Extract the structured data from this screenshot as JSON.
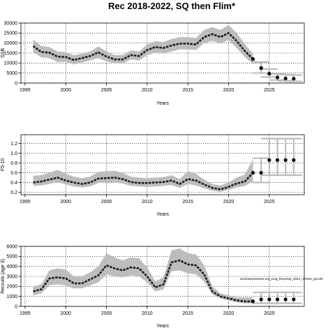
{
  "title": "Rec 2018-2022, SQ then Flim*",
  "note": "stockassessment.org_Ling_ReprSep_2024_r17924_git.e36",
  "chart_data": [
    {
      "type": "line",
      "ylabel": "SSB",
      "xlabel": "Years",
      "xlim": [
        1994.5,
        2029.3
      ],
      "ylim": [
        0,
        30000
      ],
      "xticks": [
        1995,
        2000,
        2005,
        2010,
        2015,
        2020,
        2025
      ],
      "yticks": [
        0,
        5000,
        10000,
        15000,
        20000,
        25000,
        30000
      ],
      "grid": true,
      "estimate": {
        "x": [
          1996,
          1997,
          1998,
          1999,
          2000,
          2001,
          2002,
          2003,
          2004,
          2005,
          2006,
          2007,
          2008,
          2009,
          2010,
          2011,
          2012,
          2013,
          2014,
          2015,
          2016,
          2017,
          2018,
          2019,
          2020,
          2021,
          2022,
          2023
        ],
        "y": [
          18500,
          15500,
          15200,
          13200,
          13000,
          11500,
          12500,
          13500,
          15300,
          13300,
          11800,
          11800,
          14000,
          13500,
          16500,
          18000,
          17500,
          18800,
          19700,
          19700,
          19300,
          23000,
          24500,
          23000,
          25000,
          21000,
          16000,
          12000
        ],
        "lower": [
          15500,
          12800,
          12500,
          10500,
          10500,
          9300,
          10300,
          11300,
          12500,
          10800,
          9800,
          9800,
          11800,
          11300,
          13800,
          15300,
          14800,
          15800,
          16800,
          16800,
          16500,
          20000,
          21000,
          19800,
          21500,
          17500,
          13000,
          9500
        ],
        "upper": [
          21800,
          18500,
          18000,
          15800,
          15500,
          13800,
          14800,
          15800,
          18300,
          15800,
          14000,
          14000,
          16300,
          15800,
          19300,
          21000,
          20500,
          22000,
          23000,
          23000,
          22500,
          26500,
          28000,
          26500,
          29000,
          25000,
          19500,
          14500
        ]
      },
      "projection": {
        "x": [
          2024,
          2025,
          2026,
          2027,
          2028
        ],
        "y": [
          7500,
          4700,
          2800,
          2300,
          2200
        ],
        "lower": [
          5000,
          3000,
          1500,
          1100,
          900
        ],
        "upper": [
          10500,
          7000,
          4500,
          4200,
          4000
        ]
      }
    },
    {
      "type": "line",
      "ylabel": "F5-10",
      "xlabel": "Years",
      "xlim": [
        1994.5,
        2029.3
      ],
      "ylim": [
        0.15,
        1.38
      ],
      "xticks": [
        1995,
        2000,
        2005,
        2010,
        2015,
        2020,
        2025
      ],
      "yticks": [
        0.2,
        0.4,
        0.6,
        0.8,
        1.0,
        1.2
      ],
      "ytick_labels": [
        "0.2",
        "0.4",
        "0.6",
        "0.8",
        "1.0",
        "1.2"
      ],
      "grid": true,
      "estimate": {
        "x": [
          1996,
          1997,
          1998,
          1999,
          2000,
          2001,
          2002,
          2003,
          2004,
          2005,
          2006,
          2007,
          2008,
          2009,
          2010,
          2011,
          2012,
          2013,
          2014,
          2015,
          2016,
          2017,
          2018,
          2019,
          2020,
          2021,
          2022,
          2023
        ],
        "y": [
          0.4,
          0.42,
          0.46,
          0.5,
          0.44,
          0.4,
          0.37,
          0.4,
          0.48,
          0.49,
          0.5,
          0.47,
          0.41,
          0.39,
          0.39,
          0.4,
          0.41,
          0.44,
          0.37,
          0.47,
          0.44,
          0.36,
          0.29,
          0.26,
          0.31,
          0.38,
          0.42,
          0.6
        ],
        "lower": [
          0.33,
          0.34,
          0.37,
          0.41,
          0.36,
          0.32,
          0.3,
          0.32,
          0.39,
          0.4,
          0.4,
          0.38,
          0.33,
          0.32,
          0.31,
          0.32,
          0.33,
          0.35,
          0.29,
          0.37,
          0.34,
          0.28,
          0.23,
          0.21,
          0.25,
          0.3,
          0.33,
          0.42
        ],
        "upper": [
          0.54,
          0.55,
          0.6,
          0.66,
          0.58,
          0.52,
          0.49,
          0.52,
          0.62,
          0.63,
          0.64,
          0.6,
          0.52,
          0.5,
          0.49,
          0.5,
          0.51,
          0.55,
          0.47,
          0.63,
          0.58,
          0.46,
          0.37,
          0.34,
          0.4,
          0.5,
          0.56,
          0.88
        ]
      },
      "projection": {
        "x": [
          2024,
          2025,
          2026,
          2027,
          2028
        ],
        "y": [
          0.6,
          0.86,
          0.86,
          0.86,
          0.86
        ],
        "lower": [
          0.4,
          0.55,
          0.55,
          0.55,
          0.55
        ],
        "upper": [
          0.9,
          1.3,
          1.3,
          1.3,
          1.3
        ]
      }
    },
    {
      "type": "line",
      "ylabel": "Recruits (age 3)",
      "xlabel": "Years",
      "xlim": [
        1994.5,
        2029.3
      ],
      "ylim": [
        0,
        6000
      ],
      "xticks": [
        1995,
        2000,
        2005,
        2010,
        2015,
        2020,
        2025
      ],
      "yticks": [
        0,
        1000,
        2000,
        3000,
        4000,
        5000,
        6000
      ],
      "grid": true,
      "estimate": {
        "x": [
          1996,
          1997,
          1998,
          1999,
          2000,
          2001,
          2002,
          2003,
          2004,
          2005,
          2006,
          2007,
          2008,
          2009,
          2010,
          2011,
          2012,
          2013,
          2014,
          2015,
          2016,
          2017,
          2018,
          2019,
          2020,
          2021,
          2022,
          2023
        ],
        "y": [
          1500,
          1700,
          2800,
          2900,
          2800,
          2300,
          2300,
          2700,
          3100,
          4100,
          3800,
          3600,
          3900,
          3800,
          3000,
          1900,
          2200,
          4400,
          4600,
          4200,
          4100,
          3200,
          1500,
          1000,
          800,
          600,
          500,
          500
        ],
        "lower": [
          1100,
          1300,
          2100,
          2200,
          2100,
          1800,
          1800,
          2100,
          2400,
          3200,
          3000,
          2900,
          3100,
          3000,
          2400,
          1500,
          1700,
          3500,
          3600,
          3300,
          3200,
          2500,
          1200,
          800,
          600,
          400,
          300,
          300
        ],
        "upper": [
          2000,
          2200,
          3600,
          3800,
          3700,
          3000,
          3000,
          3400,
          4000,
          5300,
          4900,
          4600,
          4900,
          4800,
          3900,
          2500,
          2900,
          5600,
          5800,
          5300,
          5200,
          4100,
          2000,
          1300,
          1100,
          900,
          900,
          900
        ]
      },
      "projection": {
        "x": [
          2024,
          2025,
          2026,
          2027,
          2028
        ],
        "y": [
          700,
          700,
          700,
          700,
          700
        ],
        "lower": [
          300,
          300,
          300,
          300,
          300
        ],
        "upper": [
          1400,
          1400,
          1400,
          1400,
          1400
        ]
      }
    }
  ]
}
